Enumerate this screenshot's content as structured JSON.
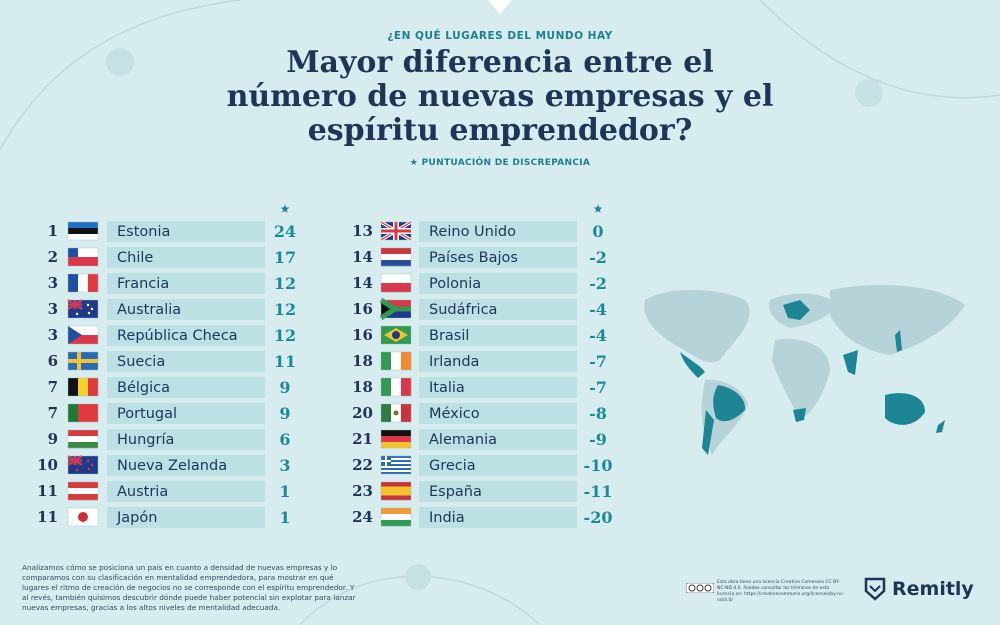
{
  "header": {
    "kicker": "¿EN QUÉ LUGARES DEL MUNDO HAY",
    "title_lines": [
      "Mayor diferencia entre el",
      "número de nuevas empresas y el",
      "espíritu emprendedor?"
    ],
    "score_label": "PUNTUACIÓN DE DISCREPANCIA"
  },
  "table": {
    "rows": [
      {
        "rank": 1,
        "country": "Estonia",
        "score": 24
      },
      {
        "rank": 2,
        "country": "Chile",
        "score": 17
      },
      {
        "rank": 3,
        "country": "Francia",
        "score": 12
      },
      {
        "rank": 3,
        "country": "Australia",
        "score": 12
      },
      {
        "rank": 3,
        "country": "República Checa",
        "score": 12
      },
      {
        "rank": 6,
        "country": "Suecia",
        "score": 11
      },
      {
        "rank": 7,
        "country": "Bélgica",
        "score": 9
      },
      {
        "rank": 7,
        "country": "Portugal",
        "score": 9
      },
      {
        "rank": 9,
        "country": "Hungría",
        "score": 6
      },
      {
        "rank": 10,
        "country": "Nueva Zelanda",
        "score": 3
      },
      {
        "rank": 11,
        "country": "Austria",
        "score": 1
      },
      {
        "rank": 11,
        "country": "Japón",
        "score": 1
      },
      {
        "rank": 13,
        "country": "Reino Unido",
        "score": 0
      },
      {
        "rank": 14,
        "country": "Países Bajos",
        "score": -2
      },
      {
        "rank": 14,
        "country": "Polonia",
        "score": -2
      },
      {
        "rank": 16,
        "country": "Sudáfrica",
        "score": -4
      },
      {
        "rank": 16,
        "country": "Brasil",
        "score": -4
      },
      {
        "rank": 18,
        "country": "Irlanda",
        "score": -7
      },
      {
        "rank": 18,
        "country": "Italia",
        "score": -7
      },
      {
        "rank": 20,
        "country": "México",
        "score": -8
      },
      {
        "rank": 21,
        "country": "Alemania",
        "score": -9
      },
      {
        "rank": 22,
        "country": "Grecia",
        "score": -10
      },
      {
        "rank": 23,
        "country": "España",
        "score": -11
      },
      {
        "rank": 24,
        "country": "India",
        "score": -20
      }
    ]
  },
  "footer": {
    "methodology": "Analizamos cómo se posiciona un país en cuanto a densidad de nuevas empresas y lo comparamos con su clasificación en mentalidad emprendedora, para mostrar en qué lugares el ritmo de creación de negocios no se corresponde con el espíritu emprendedor. Y al revés, también quisimos descubrir dónde puede haber potencial sin explotar para lanzar nuevas empresas, gracias a los altos niveles de mentalidad adecuada.",
    "license": "Esta obra tiene una licencia Creative Commons CC BY-NC-ND 4.0. Puedes consultar los términos de esta licencia en: https://creativecommons.org/licenses/by-nc-nd/4.0/",
    "brand": "Remitly"
  }
}
